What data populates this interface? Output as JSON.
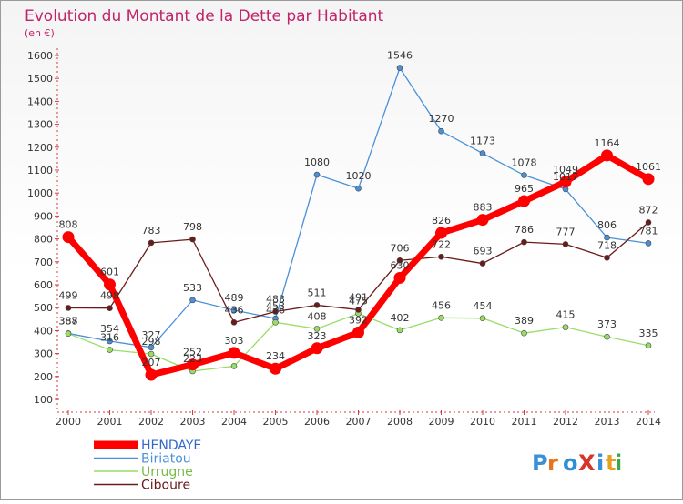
{
  "chart_data": {
    "type": "line",
    "title": "Evolution du Montant de la Dette par Habitant",
    "subtitle": "(en €)",
    "x": [
      "2000",
      "2001",
      "2002",
      "2003",
      "2004",
      "2005",
      "2006",
      "2007",
      "2008",
      "2009",
      "2010",
      "2011",
      "2012",
      "2013",
      "2014"
    ],
    "ylim": [
      100,
      1600
    ],
    "yticks": [
      100,
      200,
      300,
      400,
      500,
      600,
      700,
      800,
      900,
      1000,
      1100,
      1200,
      1300,
      1400,
      1500,
      1600
    ],
    "grid": false,
    "legend_position": "bottom-left",
    "series": [
      {
        "name": "HENDAYE",
        "color": "#ff0000",
        "values": [
          808,
          601,
          207,
          252,
          303,
          234,
          323,
          392,
          630,
          826,
          883,
          965,
          1049,
          1164,
          1061
        ]
      },
      {
        "name": "Biriatou",
        "color": "#4a90d9",
        "values": [
          388,
          354,
          327,
          533,
          489,
          453,
          1080,
          1020,
          1546,
          1270,
          1173,
          1078,
          1017,
          806,
          781
        ]
      },
      {
        "name": "Urrugne",
        "color": "#99dd66",
        "values": [
          387,
          316,
          298,
          223,
          245,
          436,
          408,
          475,
          402,
          456,
          454,
          389,
          415,
          373,
          335
        ]
      },
      {
        "name": "Ciboure",
        "color": "#6b1a1a",
        "values": [
          499,
          498,
          783,
          798,
          436,
          483,
          511,
          491,
          706,
          722,
          693,
          786,
          777,
          718,
          872
        ]
      }
    ],
    "labels": [
      {
        "x": 0,
        "v": 808,
        "text": "808"
      },
      {
        "x": 1,
        "v": 601,
        "text": "601"
      },
      {
        "x": 2,
        "v": 207,
        "text": "207"
      },
      {
        "x": 3,
        "v": 252,
        "text": "252"
      },
      {
        "x": 4,
        "v": 303,
        "text": "303"
      },
      {
        "x": 5,
        "v": 234,
        "text": "234"
      },
      {
        "x": 6,
        "v": 323,
        "text": "323"
      },
      {
        "x": 7,
        "v": 392,
        "text": "392"
      },
      {
        "x": 8,
        "v": 630,
        "text": "630"
      },
      {
        "x": 9,
        "v": 826,
        "text": "826"
      },
      {
        "x": 10,
        "v": 883,
        "text": "883"
      },
      {
        "x": 11,
        "v": 965,
        "text": "965"
      },
      {
        "x": 12,
        "v": 1049,
        "text": "1049"
      },
      {
        "x": 13,
        "v": 1164,
        "text": "1164"
      },
      {
        "x": 14,
        "v": 1061,
        "text": "1061"
      },
      {
        "x": 1,
        "v": 354,
        "text": "354"
      },
      {
        "x": 2,
        "v": 327,
        "text": "327"
      },
      {
        "x": 3,
        "v": 533,
        "text": "533"
      },
      {
        "x": 4,
        "v": 489,
        "text": "489"
      },
      {
        "x": 5,
        "v": 453,
        "text": "453"
      },
      {
        "x": 6,
        "v": 1080,
        "text": "1080"
      },
      {
        "x": 7,
        "v": 1020,
        "text": "1020"
      },
      {
        "x": 8,
        "v": 1546,
        "text": "1546"
      },
      {
        "x": 9,
        "v": 1270,
        "text": "1270"
      },
      {
        "x": 10,
        "v": 1173,
        "text": "1173"
      },
      {
        "x": 11,
        "v": 1078,
        "text": "1078"
      },
      {
        "x": 12,
        "v": 1017,
        "text": "1017"
      },
      {
        "x": 13,
        "v": 806,
        "text": "806"
      },
      {
        "x": 14,
        "v": 781,
        "text": "781"
      },
      {
        "x": 0,
        "v": 387,
        "text": "387"
      },
      {
        "x": 1,
        "v": 316,
        "text": "316"
      },
      {
        "x": 2,
        "v": 298,
        "text": "298"
      },
      {
        "x": 3,
        "v": 223,
        "text": "223"
      },
      {
        "x": 5,
        "v": 436,
        "text": "436"
      },
      {
        "x": 6,
        "v": 408,
        "text": "408"
      },
      {
        "x": 7,
        "v": 475,
        "text": "475"
      },
      {
        "x": 8,
        "v": 402,
        "text": "402"
      },
      {
        "x": 9,
        "v": 456,
        "text": "456"
      },
      {
        "x": 10,
        "v": 454,
        "text": "454"
      },
      {
        "x": 11,
        "v": 389,
        "text": "389"
      },
      {
        "x": 12,
        "v": 415,
        "text": "415"
      },
      {
        "x": 13,
        "v": 373,
        "text": "373"
      },
      {
        "x": 14,
        "v": 335,
        "text": "335"
      },
      {
        "x": 0,
        "v": 499,
        "text": "499"
      },
      {
        "x": 1,
        "v": 498,
        "text": "498"
      },
      {
        "x": 2,
        "v": 783,
        "text": "783"
      },
      {
        "x": 3,
        "v": 798,
        "text": "798"
      },
      {
        "x": 4,
        "v": 436,
        "text": "436"
      },
      {
        "x": 5,
        "v": 483,
        "text": "483"
      },
      {
        "x": 6,
        "v": 511,
        "text": "511"
      },
      {
        "x": 7,
        "v": 491,
        "text": "491"
      },
      {
        "x": 9,
        "v": 722,
        "text": "722"
      },
      {
        "x": 10,
        "v": 693,
        "text": "693"
      },
      {
        "x": 11,
        "v": 786,
        "text": "786"
      },
      {
        "x": 12,
        "v": 777,
        "text": "777"
      },
      {
        "x": 13,
        "v": 718,
        "text": "718"
      },
      {
        "x": 14,
        "v": 872,
        "text": "872"
      },
      {
        "x": 8,
        "v": 706,
        "text": "706"
      },
      {
        "x": 0,
        "v": 388,
        "text": "388"
      }
    ]
  },
  "brand": {
    "logo_text": "ProXiti"
  }
}
